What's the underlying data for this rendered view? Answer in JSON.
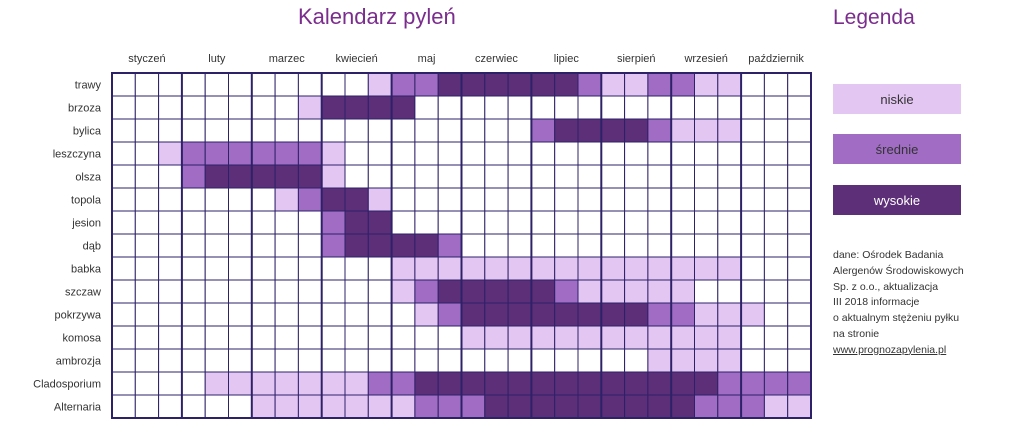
{
  "title": "Kalendarz pyleń",
  "legend": {
    "title": "Legenda",
    "items": [
      {
        "key": "low",
        "label": "niskie",
        "color": "#e4c6f3"
      },
      {
        "key": "medium",
        "label": "średnie",
        "color": "#a06cc4"
      },
      {
        "key": "high",
        "label": "wysokie",
        "color": "#5d2f78"
      }
    ]
  },
  "source": {
    "lines": [
      "dane: Ośrodek Badania",
      "Alergenów Środowiskowych",
      "Sp. z o.o., aktualizacja",
      "III 2018 informacje",
      "o aktualnym stężeniu pyłku",
      "na stronie"
    ],
    "link": "www.prognozapylenia.pl"
  },
  "chart_data": {
    "type": "heatmap",
    "title": "Kalendarz pyleń",
    "months": [
      "styczeń",
      "luty",
      "marzec",
      "kwiecień",
      "maj",
      "czerwiec",
      "lipiec",
      "sierpień",
      "wrzesień",
      "październik"
    ],
    "periods_per_month": 3,
    "levels": {
      "0": "brak",
      "1": "niskie",
      "2": "średnie",
      "3": "wysokie"
    },
    "colors": {
      "0": "#ffffff",
      "1": "#e4c6f3",
      "2": "#a06cc4",
      "3": "#5d2f78"
    },
    "rows": [
      {
        "name": "trawy",
        "values": [
          0,
          0,
          0,
          0,
          0,
          0,
          0,
          0,
          0,
          0,
          0,
          1,
          2,
          2,
          3,
          3,
          3,
          3,
          3,
          3,
          2,
          1,
          1,
          2,
          2,
          1,
          1,
          0,
          0,
          0
        ]
      },
      {
        "name": "brzoza",
        "values": [
          0,
          0,
          0,
          0,
          0,
          0,
          0,
          0,
          1,
          3,
          3,
          3,
          3,
          0,
          0,
          0,
          0,
          0,
          0,
          0,
          0,
          0,
          0,
          0,
          0,
          0,
          0,
          0,
          0,
          0
        ]
      },
      {
        "name": "bylica",
        "values": [
          0,
          0,
          0,
          0,
          0,
          0,
          0,
          0,
          0,
          0,
          0,
          0,
          0,
          0,
          0,
          0,
          0,
          0,
          2,
          3,
          3,
          3,
          3,
          2,
          1,
          1,
          1,
          0,
          0,
          0
        ]
      },
      {
        "name": "leszczyna",
        "values": [
          0,
          0,
          1,
          2,
          2,
          2,
          2,
          2,
          2,
          1,
          0,
          0,
          0,
          0,
          0,
          0,
          0,
          0,
          0,
          0,
          0,
          0,
          0,
          0,
          0,
          0,
          0,
          0,
          0,
          0
        ]
      },
      {
        "name": "olsza",
        "values": [
          0,
          0,
          0,
          2,
          3,
          3,
          3,
          3,
          3,
          1,
          0,
          0,
          0,
          0,
          0,
          0,
          0,
          0,
          0,
          0,
          0,
          0,
          0,
          0,
          0,
          0,
          0,
          0,
          0,
          0
        ]
      },
      {
        "name": "topola",
        "values": [
          0,
          0,
          0,
          0,
          0,
          0,
          0,
          1,
          2,
          3,
          3,
          1,
          0,
          0,
          0,
          0,
          0,
          0,
          0,
          0,
          0,
          0,
          0,
          0,
          0,
          0,
          0,
          0,
          0,
          0
        ]
      },
      {
        "name": "jesion",
        "values": [
          0,
          0,
          0,
          0,
          0,
          0,
          0,
          0,
          0,
          2,
          3,
          3,
          0,
          0,
          0,
          0,
          0,
          0,
          0,
          0,
          0,
          0,
          0,
          0,
          0,
          0,
          0,
          0,
          0,
          0
        ]
      },
      {
        "name": "dąb",
        "values": [
          0,
          0,
          0,
          0,
          0,
          0,
          0,
          0,
          0,
          2,
          3,
          3,
          3,
          3,
          2,
          0,
          0,
          0,
          0,
          0,
          0,
          0,
          0,
          0,
          0,
          0,
          0,
          0,
          0,
          0
        ]
      },
      {
        "name": "babka",
        "values": [
          0,
          0,
          0,
          0,
          0,
          0,
          0,
          0,
          0,
          0,
          0,
          0,
          1,
          1,
          1,
          1,
          1,
          1,
          1,
          1,
          1,
          1,
          1,
          1,
          1,
          1,
          1,
          0,
          0,
          0
        ]
      },
      {
        "name": "szczaw",
        "values": [
          0,
          0,
          0,
          0,
          0,
          0,
          0,
          0,
          0,
          0,
          0,
          0,
          1,
          2,
          3,
          3,
          3,
          3,
          3,
          2,
          1,
          1,
          1,
          1,
          1,
          0,
          0,
          0,
          0,
          0
        ]
      },
      {
        "name": "pokrzywa",
        "values": [
          0,
          0,
          0,
          0,
          0,
          0,
          0,
          0,
          0,
          0,
          0,
          0,
          0,
          1,
          2,
          3,
          3,
          3,
          3,
          3,
          3,
          3,
          3,
          2,
          2,
          1,
          1,
          1,
          0,
          0
        ]
      },
      {
        "name": "komosa",
        "values": [
          0,
          0,
          0,
          0,
          0,
          0,
          0,
          0,
          0,
          0,
          0,
          0,
          0,
          0,
          0,
          1,
          1,
          1,
          1,
          1,
          1,
          1,
          1,
          1,
          1,
          1,
          1,
          0,
          0,
          0
        ]
      },
      {
        "name": "ambrozja",
        "values": [
          0,
          0,
          0,
          0,
          0,
          0,
          0,
          0,
          0,
          0,
          0,
          0,
          0,
          0,
          0,
          0,
          0,
          0,
          0,
          0,
          0,
          0,
          0,
          1,
          1,
          1,
          1,
          0,
          0,
          0
        ]
      },
      {
        "name": "Cladosporium",
        "values": [
          0,
          0,
          0,
          0,
          1,
          1,
          1,
          1,
          1,
          1,
          1,
          2,
          2,
          3,
          3,
          3,
          3,
          3,
          3,
          3,
          3,
          3,
          3,
          3,
          3,
          3,
          2,
          2,
          2,
          2
        ]
      },
      {
        "name": "Alternaria",
        "values": [
          0,
          0,
          0,
          0,
          0,
          0,
          1,
          1,
          1,
          1,
          1,
          1,
          1,
          2,
          2,
          2,
          3,
          3,
          3,
          3,
          3,
          3,
          3,
          3,
          3,
          2,
          2,
          2,
          1,
          1
        ]
      }
    ]
  }
}
